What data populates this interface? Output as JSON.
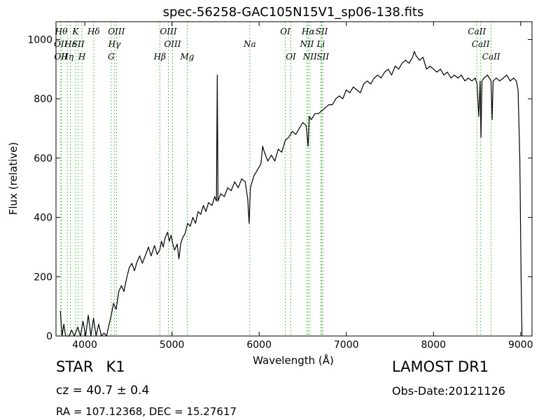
{
  "chart_data": {
    "type": "line",
    "title": "spec-56258-GAC105N15V1_sp06-138.fits",
    "xlabel": "Wavelength (Å)",
    "ylabel": "Flux (relative)",
    "xlim": [
      3670,
      9130
    ],
    "ylim": [
      0,
      1060
    ],
    "xticks": [
      4000,
      5000,
      6000,
      7000,
      8000,
      9000
    ],
    "yticks": [
      0,
      200,
      400,
      600,
      800,
      1000
    ],
    "grid": false,
    "series": [
      {
        "color": "#000000",
        "points": [
          [
            3720,
            85
          ],
          [
            3740,
            0
          ],
          [
            3760,
            40
          ],
          [
            3780,
            0
          ],
          [
            3820,
            0
          ],
          [
            3850,
            20
          ],
          [
            3880,
            0
          ],
          [
            3920,
            30
          ],
          [
            3950,
            0
          ],
          [
            3980,
            50
          ],
          [
            4010,
            0
          ],
          [
            4040,
            70
          ],
          [
            4070,
            0
          ],
          [
            4100,
            60
          ],
          [
            4130,
            0
          ],
          [
            4160,
            40
          ],
          [
            4190,
            0
          ],
          [
            4220,
            10
          ],
          [
            4250,
            0
          ],
          [
            4280,
            40
          ],
          [
            4300,
            65
          ],
          [
            4330,
            110
          ],
          [
            4360,
            90
          ],
          [
            4390,
            150
          ],
          [
            4420,
            170
          ],
          [
            4450,
            150
          ],
          [
            4480,
            195
          ],
          [
            4510,
            230
          ],
          [
            4540,
            245
          ],
          [
            4570,
            220
          ],
          [
            4600,
            250
          ],
          [
            4630,
            270
          ],
          [
            4660,
            245
          ],
          [
            4700,
            275
          ],
          [
            4730,
            300
          ],
          [
            4760,
            270
          ],
          [
            4800,
            305
          ],
          [
            4830,
            275
          ],
          [
            4860,
            290
          ],
          [
            4880,
            320
          ],
          [
            4900,
            300
          ],
          [
            4920,
            330
          ],
          [
            4950,
            350
          ],
          [
            4970,
            320
          ],
          [
            4990,
            340
          ],
          [
            5010,
            310
          ],
          [
            5030,
            290
          ],
          [
            5060,
            310
          ],
          [
            5080,
            260
          ],
          [
            5100,
            310
          ],
          [
            5120,
            330
          ],
          [
            5150,
            345
          ],
          [
            5180,
            380
          ],
          [
            5210,
            370
          ],
          [
            5240,
            400
          ],
          [
            5270,
            380
          ],
          [
            5300,
            420
          ],
          [
            5330,
            410
          ],
          [
            5360,
            440
          ],
          [
            5390,
            420
          ],
          [
            5420,
            450
          ],
          [
            5460,
            440
          ],
          [
            5490,
            470
          ],
          [
            5510,
            455
          ],
          [
            5520,
            880
          ],
          [
            5528,
            455
          ],
          [
            5560,
            480
          ],
          [
            5600,
            470
          ],
          [
            5640,
            500
          ],
          [
            5680,
            490
          ],
          [
            5720,
            520
          ],
          [
            5760,
            500
          ],
          [
            5800,
            530
          ],
          [
            5840,
            520
          ],
          [
            5870,
            460
          ],
          [
            5885,
            380
          ],
          [
            5900,
            500
          ],
          [
            5940,
            540
          ],
          [
            5980,
            560
          ],
          [
            6020,
            580
          ],
          [
            6040,
            640
          ],
          [
            6060,
            620
          ],
          [
            6100,
            590
          ],
          [
            6140,
            610
          ],
          [
            6180,
            590
          ],
          [
            6220,
            630
          ],
          [
            6260,
            620
          ],
          [
            6300,
            660
          ],
          [
            6340,
            670
          ],
          [
            6380,
            690
          ],
          [
            6420,
            680
          ],
          [
            6460,
            700
          ],
          [
            6500,
            720
          ],
          [
            6540,
            710
          ],
          [
            6562,
            640
          ],
          [
            6575,
            740
          ],
          [
            6600,
            730
          ],
          [
            6640,
            750
          ],
          [
            6680,
            750
          ],
          [
            6720,
            760
          ],
          [
            6760,
            770
          ],
          [
            6800,
            780
          ],
          [
            6840,
            780
          ],
          [
            6880,
            800
          ],
          [
            6920,
            810
          ],
          [
            6960,
            800
          ],
          [
            7000,
            830
          ],
          [
            7040,
            820
          ],
          [
            7080,
            840
          ],
          [
            7120,
            830
          ],
          [
            7160,
            820
          ],
          [
            7200,
            850
          ],
          [
            7240,
            860
          ],
          [
            7280,
            850
          ],
          [
            7320,
            870
          ],
          [
            7360,
            880
          ],
          [
            7400,
            870
          ],
          [
            7440,
            890
          ],
          [
            7480,
            900
          ],
          [
            7520,
            880
          ],
          [
            7560,
            910
          ],
          [
            7600,
            900
          ],
          [
            7640,
            920
          ],
          [
            7680,
            930
          ],
          [
            7720,
            920
          ],
          [
            7760,
            940
          ],
          [
            7780,
            960
          ],
          [
            7800,
            945
          ],
          [
            7840,
            930
          ],
          [
            7880,
            940
          ],
          [
            7920,
            900
          ],
          [
            7960,
            910
          ],
          [
            8000,
            900
          ],
          [
            8040,
            890
          ],
          [
            8080,
            900
          ],
          [
            8120,
            880
          ],
          [
            8160,
            890
          ],
          [
            8200,
            870
          ],
          [
            8240,
            880
          ],
          [
            8280,
            870
          ],
          [
            8320,
            880
          ],
          [
            8360,
            860
          ],
          [
            8400,
            870
          ],
          [
            8440,
            860
          ],
          [
            8480,
            870
          ],
          [
            8500,
            850
          ],
          [
            8520,
            740
          ],
          [
            8535,
            860
          ],
          [
            8545,
            670
          ],
          [
            8556,
            860
          ],
          [
            8580,
            870
          ],
          [
            8620,
            880
          ],
          [
            8660,
            860
          ],
          [
            8672,
            730
          ],
          [
            8684,
            860
          ],
          [
            8720,
            870
          ],
          [
            8760,
            860
          ],
          [
            8800,
            870
          ],
          [
            8840,
            880
          ],
          [
            8880,
            860
          ],
          [
            8920,
            870
          ],
          [
            8950,
            860
          ],
          [
            8970,
            830
          ],
          [
            8990,
            600
          ],
          [
            9005,
            200
          ],
          [
            9015,
            0
          ]
        ]
      }
    ],
    "emission_lines": {
      "color": "#32b432",
      "lines": [
        {
          "label": "Hθ",
          "x": 3730,
          "row": 0
        },
        {
          "label": "OII",
          "x": 3725,
          "row": 1
        },
        {
          "label": "OII",
          "x": 3727,
          "row": 2
        },
        {
          "label": "Hε",
          "x": 3835,
          "row": 1
        },
        {
          "label": "Hη",
          "x": 3800,
          "row": 2
        },
        {
          "label": "K",
          "x": 3894,
          "row": 0
        },
        {
          "label": "SII",
          "x": 3925,
          "row": 1
        },
        {
          "label": "H",
          "x": 3968,
          "row": 2
        },
        {
          "label": "Hδ",
          "x": 4102,
          "row": 0
        },
        {
          "label": "OIII",
          "x": 4363,
          "row": 0
        },
        {
          "label": "Hγ",
          "x": 4340,
          "row": 1
        },
        {
          "label": "G",
          "x": 4304,
          "row": 2
        },
        {
          "label": "OIII",
          "x": 4959,
          "row": 0
        },
        {
          "label": "OIII",
          "x": 5007,
          "row": 1
        },
        {
          "label": "Hβ",
          "x": 4861,
          "row": 2
        },
        {
          "label": "Mg",
          "x": 5175,
          "row": 2
        },
        {
          "label": "Na",
          "x": 5893,
          "row": 1
        },
        {
          "label": "OI",
          "x": 6300,
          "row": 0
        },
        {
          "label": "OI",
          "x": 6364,
          "row": 2
        },
        {
          "label": "Hα",
          "x": 6563,
          "row": 0
        },
        {
          "label": "SII",
          "x": 6717,
          "row": 0
        },
        {
          "label": "NII",
          "x": 6548,
          "row": 1
        },
        {
          "label": "Li",
          "x": 6708,
          "row": 1
        },
        {
          "label": "NII",
          "x": 6583,
          "row": 2
        },
        {
          "label": "SII",
          "x": 6731,
          "row": 2
        },
        {
          "label": "CaII",
          "x": 8498,
          "row": 0
        },
        {
          "label": "CaII",
          "x": 8542,
          "row": 1
        },
        {
          "label": "CaII",
          "x": 8662,
          "row": 2
        }
      ]
    }
  },
  "info": {
    "object_class": "STAR",
    "subclass": "K1",
    "redshift": "cz = 40.7 ± 0.4",
    "coords": "RA = 107.12368, DEC = 15.27617",
    "survey": "LAMOST DR1",
    "obs_date": "Obs-Date:20121126"
  }
}
